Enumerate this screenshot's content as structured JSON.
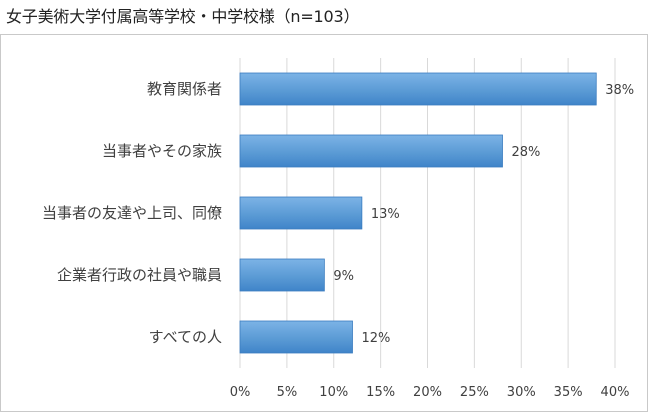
{
  "title": "女子美術大学付属高等学校・中学校様（n=103）",
  "chart_data": {
    "type": "bar",
    "orientation": "horizontal",
    "categories": [
      "教育関係者",
      "当事者やその家族",
      "当事者の友達や上司、同僚",
      "企業者行政の社員や職員",
      "すべての人"
    ],
    "values": [
      38,
      28,
      13,
      9,
      12
    ],
    "value_labels": [
      "38%",
      "28%",
      "13%",
      "9%",
      "12%"
    ],
    "xlim": [
      0,
      40
    ],
    "xticks": [
      "0%",
      "5%",
      "10%",
      "15%",
      "20%",
      "25%",
      "30%",
      "35%",
      "40%"
    ],
    "grid": "vertical",
    "legend": "none",
    "bar_color": "#5b9bd5",
    "bar_color_dark": "#3a7cc0"
  }
}
